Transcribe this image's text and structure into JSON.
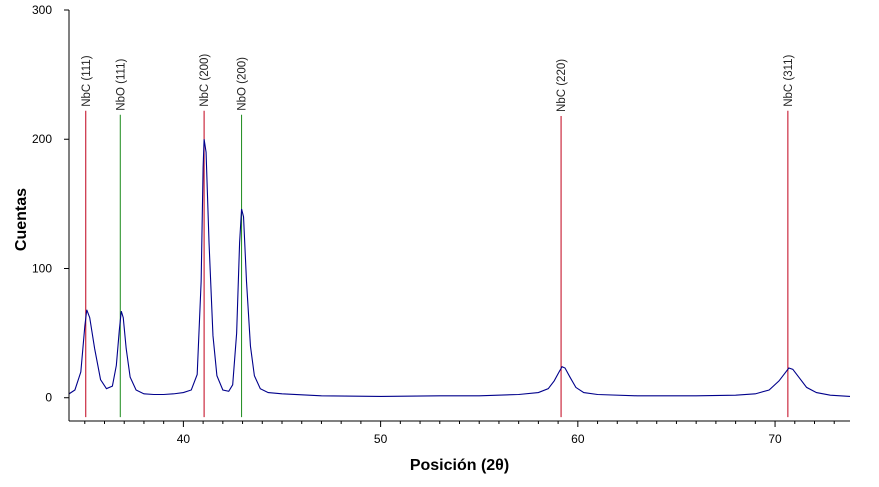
{
  "chart_data": {
    "type": "line",
    "xlabel": "Posición (2θ)",
    "ylabel": "Cuentas",
    "xlim": [
      34.2,
      73.8
    ],
    "ylim": [
      -18,
      300
    ],
    "x_ticks": [
      40,
      50,
      60,
      70
    ],
    "y_ticks": [
      0,
      100,
      200,
      300
    ],
    "grid": false,
    "colors": {
      "pattern": "#00008b",
      "NbC": "#c0001a",
      "NbO": "#1a8a1a"
    },
    "series": [
      {
        "values": [
          [
            34.2,
            3
          ],
          [
            34.5,
            6
          ],
          [
            34.8,
            20
          ],
          [
            35.0,
            55
          ],
          [
            35.1,
            68
          ],
          [
            35.25,
            62
          ],
          [
            35.5,
            38
          ],
          [
            35.8,
            14
          ],
          [
            36.1,
            7
          ],
          [
            36.4,
            9
          ],
          [
            36.6,
            25
          ],
          [
            36.75,
            52
          ],
          [
            36.85,
            67
          ],
          [
            36.95,
            62
          ],
          [
            37.1,
            38
          ],
          [
            37.3,
            16
          ],
          [
            37.6,
            6
          ],
          [
            38.0,
            3
          ],
          [
            38.5,
            2.5
          ],
          [
            39.0,
            2.5
          ],
          [
            39.5,
            3
          ],
          [
            40.0,
            4
          ],
          [
            40.4,
            6
          ],
          [
            40.7,
            18
          ],
          [
            40.9,
            90
          ],
          [
            41.0,
            178
          ],
          [
            41.05,
            200
          ],
          [
            41.15,
            190
          ],
          [
            41.3,
            120
          ],
          [
            41.5,
            48
          ],
          [
            41.7,
            17
          ],
          [
            42.0,
            6
          ],
          [
            42.3,
            5
          ],
          [
            42.5,
            10
          ],
          [
            42.7,
            50
          ],
          [
            42.85,
            120
          ],
          [
            42.95,
            146
          ],
          [
            43.05,
            140
          ],
          [
            43.2,
            90
          ],
          [
            43.4,
            40
          ],
          [
            43.6,
            17
          ],
          [
            43.9,
            7
          ],
          [
            44.3,
            4
          ],
          [
            45.0,
            3
          ],
          [
            47.0,
            1.5
          ],
          [
            50.0,
            1
          ],
          [
            53.0,
            1.5
          ],
          [
            55.0,
            1.5
          ],
          [
            57.0,
            2.5
          ],
          [
            58.0,
            4
          ],
          [
            58.5,
            7
          ],
          [
            58.8,
            13
          ],
          [
            59.05,
            20
          ],
          [
            59.2,
            24
          ],
          [
            59.35,
            23
          ],
          [
            59.6,
            16
          ],
          [
            59.9,
            8
          ],
          [
            60.3,
            4
          ],
          [
            61.0,
            2.5
          ],
          [
            63.0,
            1.5
          ],
          [
            66.0,
            1.5
          ],
          [
            68.0,
            2
          ],
          [
            69.0,
            3
          ],
          [
            69.7,
            6
          ],
          [
            70.2,
            13
          ],
          [
            70.5,
            19
          ],
          [
            70.7,
            23
          ],
          [
            70.9,
            22
          ],
          [
            71.2,
            16
          ],
          [
            71.6,
            8
          ],
          [
            72.1,
            4
          ],
          [
            72.8,
            2
          ],
          [
            73.8,
            1
          ]
        ]
      }
    ],
    "reference_lines": [
      {
        "label": "NbC (111)",
        "x": 35.05,
        "height": 222,
        "phase": "NbC"
      },
      {
        "label": "NbO (111)",
        "x": 36.8,
        "height": 219,
        "phase": "NbO"
      },
      {
        "label": "NbC (200)",
        "x": 41.05,
        "height": 222,
        "phase": "NbC"
      },
      {
        "label": "NbO (200)",
        "x": 42.95,
        "height": 219,
        "phase": "NbO"
      },
      {
        "label": "NbC (220)",
        "x": 59.15,
        "height": 218,
        "phase": "NbC"
      },
      {
        "label": "NbC (311)",
        "x": 70.65,
        "height": 222,
        "phase": "NbC"
      }
    ]
  }
}
